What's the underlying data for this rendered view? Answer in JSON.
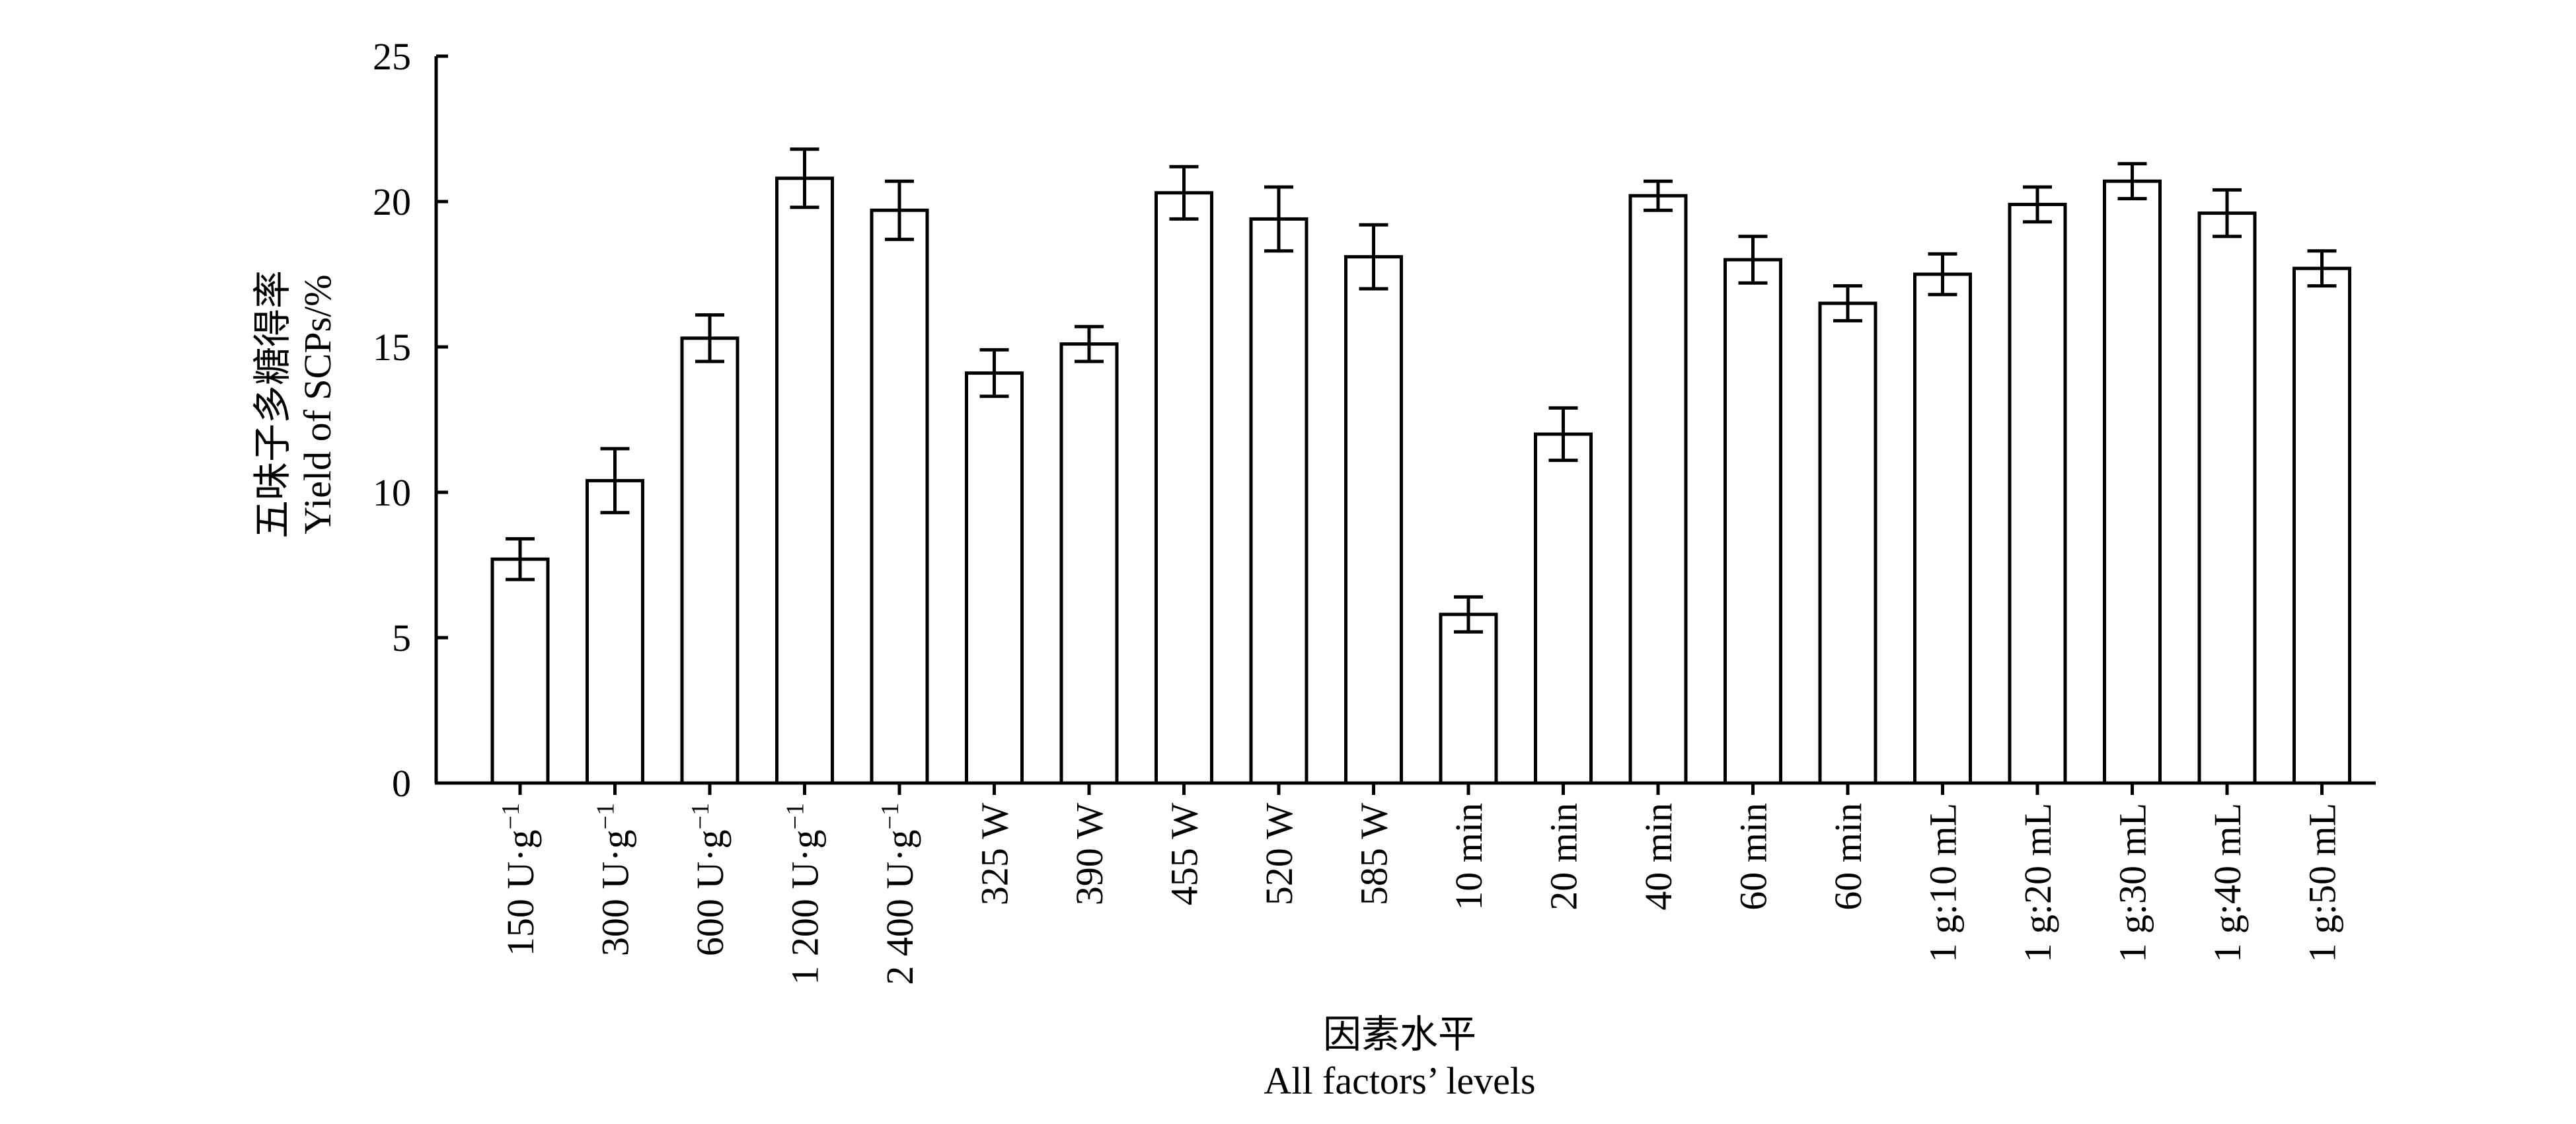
{
  "chart_data": {
    "type": "bar",
    "categories": [
      {
        "main": "150 U·g",
        "sup": "−1"
      },
      {
        "main": "300 U·g",
        "sup": "−1"
      },
      {
        "main": "600 U·g",
        "sup": "−1"
      },
      {
        "main": "1 200 U·g",
        "sup": "−1"
      },
      {
        "main": "2 400 U·g",
        "sup": "−1"
      },
      {
        "main": "325 W",
        "sup": ""
      },
      {
        "main": "390 W",
        "sup": ""
      },
      {
        "main": "455 W",
        "sup": ""
      },
      {
        "main": "520 W",
        "sup": ""
      },
      {
        "main": "585 W",
        "sup": ""
      },
      {
        "main": "10 min",
        "sup": ""
      },
      {
        "main": "20 min",
        "sup": ""
      },
      {
        "main": "40 min",
        "sup": ""
      },
      {
        "main": "60 min",
        "sup": ""
      },
      {
        "main": "60 min",
        "sup": ""
      },
      {
        "main": "1 g:10 mL",
        "sup": ""
      },
      {
        "main": "1 g:20 mL",
        "sup": ""
      },
      {
        "main": "1 g:30 mL",
        "sup": ""
      },
      {
        "main": "1 g:40 mL",
        "sup": ""
      },
      {
        "main": "1 g:50 mL",
        "sup": ""
      }
    ],
    "values": [
      7.7,
      10.4,
      15.3,
      20.8,
      19.7,
      14.1,
      15.1,
      20.3,
      19.4,
      18.1,
      5.8,
      12.0,
      20.2,
      18.0,
      16.5,
      17.5,
      19.9,
      20.7,
      19.6,
      17.7
    ],
    "errors": [
      0.7,
      1.1,
      0.8,
      1.0,
      1.0,
      0.8,
      0.6,
      0.9,
      1.1,
      1.1,
      0.6,
      0.9,
      0.5,
      0.8,
      0.6,
      0.7,
      0.6,
      0.6,
      0.8,
      0.6
    ],
    "ylim": [
      0,
      25
    ],
    "yticks": [
      "0",
      "5",
      "10",
      "15",
      "20",
      "25"
    ],
    "ylabel_cn": "五味子多糖得率",
    "ylabel_en": "Yield of SCPs/%",
    "xlabel_cn": "因素水平",
    "xlabel_en": "All factors’ levels",
    "grid": false,
    "legend": "none",
    "bar_fill": "#ffffff",
    "bar_stroke": "#000000"
  }
}
